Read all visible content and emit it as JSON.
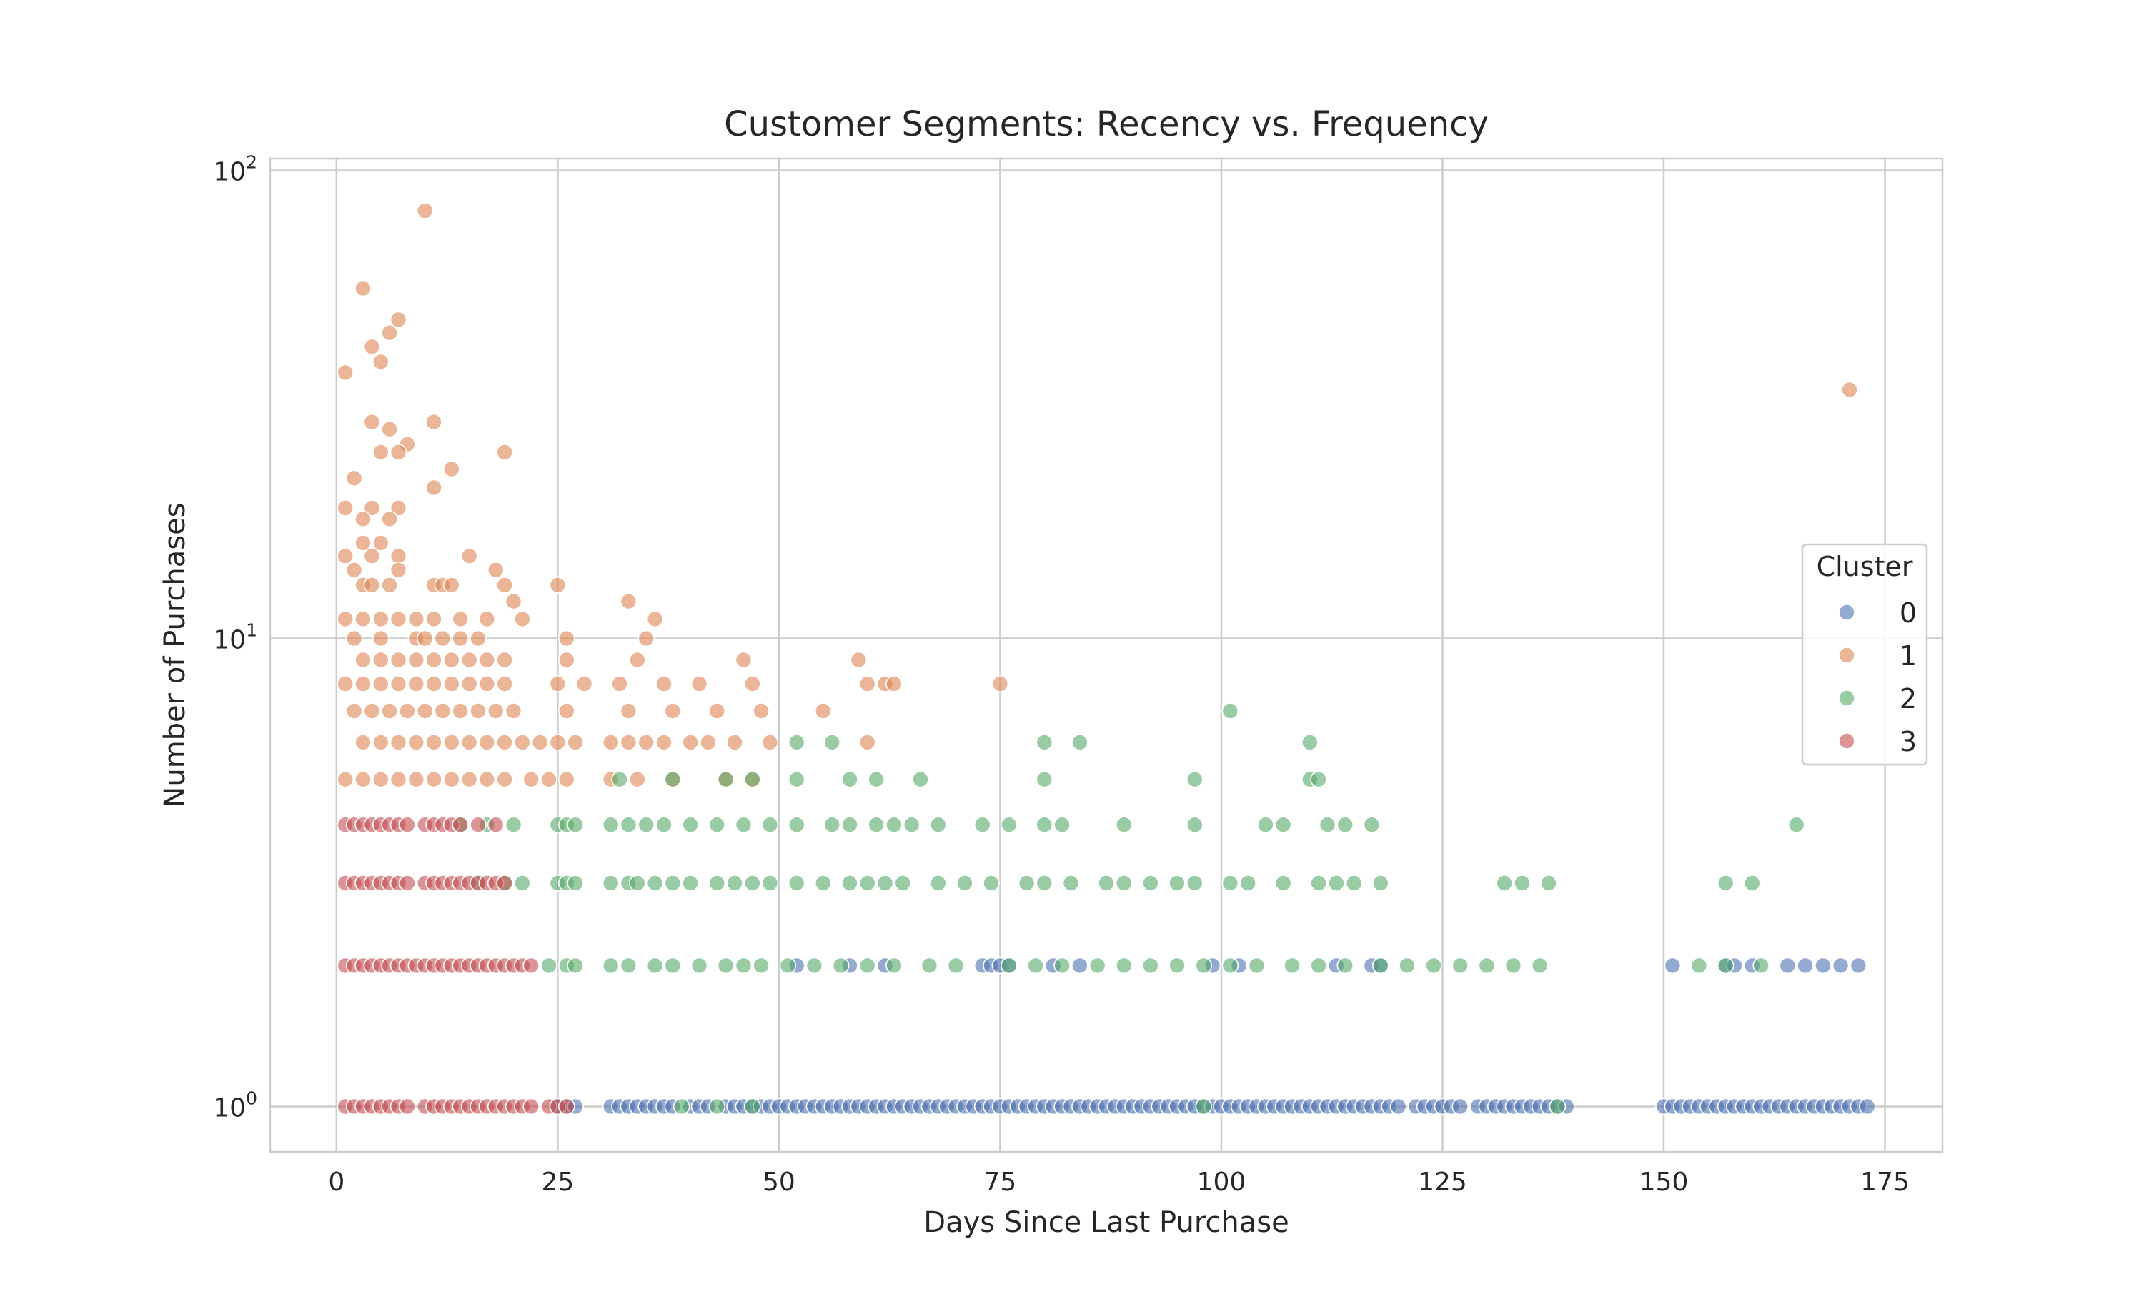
{
  "chart_data": {
    "type": "scatter",
    "title": "Customer Segments: Recency vs. Frequency",
    "xlabel": "Days Since Last Purchase",
    "ylabel": "Number of Purchases",
    "xlim": [
      -7.5,
      181.5
    ],
    "ylim": [
      0.8,
      106
    ],
    "y_scale": "log",
    "x_ticks": [
      0,
      25,
      50,
      75,
      100,
      125,
      150,
      175
    ],
    "y_ticks": [
      {
        "value": 1,
        "base": "10",
        "exp": "0"
      },
      {
        "value": 10,
        "base": "10",
        "exp": "1"
      },
      {
        "value": 100,
        "base": "10",
        "exp": "2"
      }
    ],
    "grid": true,
    "point_alpha": 0.6,
    "legend": {
      "title": "Cluster",
      "position": "center-right"
    },
    "series": [
      {
        "name": "0",
        "color": "#4c72b0",
        "x": [
          25,
          26,
          27,
          31,
          32,
          33,
          34,
          35,
          36,
          37,
          38,
          40,
          41,
          42,
          44,
          45,
          46,
          47,
          48,
          49,
          50,
          51,
          52,
          53,
          54,
          55,
          56,
          57,
          58,
          59,
          60,
          61,
          62,
          63,
          64,
          65,
          66,
          67,
          68,
          69,
          70,
          71,
          72,
          73,
          74,
          75,
          76,
          77,
          78,
          79,
          80,
          81,
          82,
          83,
          84,
          85,
          86,
          87,
          88,
          89,
          90,
          91,
          92,
          93,
          94,
          95,
          96,
          97,
          98,
          99,
          100,
          101,
          102,
          103,
          104,
          105,
          106,
          107,
          108,
          109,
          110,
          111,
          112,
          113,
          114,
          115,
          116,
          117,
          118,
          119,
          120,
          122,
          123,
          124,
          125,
          126,
          127,
          129,
          130,
          131,
          132,
          133,
          134,
          135,
          136,
          137,
          138,
          139,
          150,
          151,
          152,
          153,
          154,
          155,
          156,
          157,
          158,
          159,
          160,
          161,
          162,
          163,
          164,
          165,
          166,
          167,
          168,
          169,
          170,
          171,
          172,
          173,
          52,
          58,
          62,
          73,
          74,
          75,
          76,
          81,
          84,
          99,
          102,
          113,
          117,
          118,
          151,
          157,
          158,
          160,
          164,
          166,
          168,
          170,
          172
        ],
        "y": [
          1,
          1,
          1,
          1,
          1,
          1,
          1,
          1,
          1,
          1,
          1,
          1,
          1,
          1,
          1,
          1,
          1,
          1,
          1,
          1,
          1,
          1,
          1,
          1,
          1,
          1,
          1,
          1,
          1,
          1,
          1,
          1,
          1,
          1,
          1,
          1,
          1,
          1,
          1,
          1,
          1,
          1,
          1,
          1,
          1,
          1,
          1,
          1,
          1,
          1,
          1,
          1,
          1,
          1,
          1,
          1,
          1,
          1,
          1,
          1,
          1,
          1,
          1,
          1,
          1,
          1,
          1,
          1,
          1,
          1,
          1,
          1,
          1,
          1,
          1,
          1,
          1,
          1,
          1,
          1,
          1,
          1,
          1,
          1,
          1,
          1,
          1,
          1,
          1,
          1,
          1,
          1,
          1,
          1,
          1,
          1,
          1,
          1,
          1,
          1,
          1,
          1,
          1,
          1,
          1,
          1,
          1,
          1,
          1,
          1,
          1,
          1,
          1,
          1,
          1,
          1,
          1,
          1,
          1,
          1,
          1,
          1,
          1,
          1,
          1,
          1,
          1,
          1,
          1,
          1,
          1,
          1,
          2,
          2,
          2,
          2,
          2,
          2,
          2,
          2,
          2,
          2,
          2,
          2,
          2,
          2,
          2,
          2,
          2,
          2,
          2,
          2,
          2,
          2,
          2
        ]
      },
      {
        "name": "1",
        "color": "#dd8452",
        "x": [
          10,
          3,
          7,
          6,
          4,
          5,
          1,
          11,
          4,
          6,
          8,
          5,
          19,
          7,
          13,
          2,
          11,
          7,
          1,
          4,
          3,
          6,
          3,
          5,
          1,
          4,
          7,
          15,
          18,
          2,
          3,
          4,
          6,
          7,
          11,
          12,
          13,
          19,
          25,
          33,
          1,
          3,
          5,
          7,
          9,
          11,
          14,
          17,
          20,
          21,
          36,
          2,
          5,
          9,
          10,
          12,
          14,
          16,
          26,
          35,
          3,
          5,
          7,
          9,
          11,
          13,
          15,
          17,
          19,
          26,
          34,
          46,
          59,
          1,
          3,
          5,
          7,
          9,
          11,
          13,
          15,
          17,
          19,
          25,
          28,
          32,
          37,
          41,
          47,
          60,
          62,
          63,
          75,
          2,
          4,
          6,
          8,
          10,
          12,
          14,
          16,
          18,
          20,
          26,
          33,
          38,
          43,
          48,
          55,
          3,
          5,
          7,
          9,
          11,
          13,
          15,
          17,
          19,
          21,
          23,
          25,
          27,
          31,
          33,
          35,
          37,
          40,
          42,
          45,
          49,
          60,
          1,
          3,
          5,
          7,
          9,
          11,
          13,
          15,
          17,
          19,
          22,
          24,
          26,
          31,
          34,
          38,
          44,
          47,
          171
        ],
        "y": [
          82,
          56,
          48,
          45,
          42,
          39,
          37,
          29,
          29,
          28,
          26,
          25,
          25,
          25,
          23,
          22,
          21,
          19,
          19,
          19,
          18,
          18,
          16,
          16,
          15,
          15,
          15,
          15,
          14,
          14,
          13,
          13,
          13,
          14,
          13,
          13,
          13,
          13,
          13,
          12,
          11,
          11,
          11,
          11,
          11,
          11,
          11,
          11,
          12,
          11,
          11,
          10,
          10,
          10,
          10,
          10,
          10,
          10,
          10,
          10,
          9,
          9,
          9,
          9,
          9,
          9,
          9,
          9,
          9,
          9,
          9,
          9,
          9,
          8,
          8,
          8,
          8,
          8,
          8,
          8,
          8,
          8,
          8,
          8,
          8,
          8,
          8,
          8,
          8,
          8,
          8,
          8,
          8,
          7,
          7,
          7,
          7,
          7,
          7,
          7,
          7,
          7,
          7,
          7,
          7,
          7,
          7,
          7,
          7,
          6,
          6,
          6,
          6,
          6,
          6,
          6,
          6,
          6,
          6,
          6,
          6,
          6,
          6,
          6,
          6,
          6,
          6,
          6,
          6,
          6,
          6,
          5,
          5,
          5,
          5,
          5,
          5,
          5,
          5,
          5,
          5,
          5,
          5,
          5,
          5,
          5,
          5,
          5,
          5,
          34
        ]
      },
      {
        "name": "2",
        "color": "#55a868",
        "x": [
          101,
          52,
          56,
          80,
          84,
          110,
          32,
          38,
          44,
          47,
          52,
          58,
          61,
          66,
          80,
          97,
          110,
          111,
          14,
          17,
          20,
          25,
          26,
          27,
          31,
          33,
          35,
          37,
          40,
          43,
          46,
          49,
          52,
          56,
          58,
          61,
          63,
          65,
          68,
          73,
          76,
          80,
          82,
          89,
          97,
          105,
          107,
          112,
          114,
          117,
          165,
          16,
          19,
          21,
          25,
          26,
          27,
          31,
          33,
          34,
          36,
          38,
          40,
          43,
          45,
          47,
          49,
          52,
          55,
          58,
          60,
          62,
          64,
          68,
          71,
          74,
          78,
          80,
          83,
          87,
          89,
          92,
          95,
          97,
          101,
          103,
          107,
          111,
          113,
          115,
          118,
          132,
          134,
          137,
          157,
          160,
          24,
          26,
          27,
          31,
          33,
          36,
          38,
          41,
          44,
          46,
          48,
          51,
          54,
          57,
          60,
          63,
          67,
          70,
          76,
          79,
          82,
          86,
          89,
          92,
          95,
          98,
          101,
          104,
          108,
          111,
          114,
          118,
          121,
          124,
          127,
          130,
          133,
          136,
          154,
          157,
          161,
          39,
          43,
          47,
          98,
          138
        ],
        "y": [
          7,
          6,
          6,
          6,
          6,
          6,
          5,
          5,
          5,
          5,
          5,
          5,
          5,
          5,
          5,
          5,
          5,
          5,
          4,
          4,
          4,
          4,
          4,
          4,
          4,
          4,
          4,
          4,
          4,
          4,
          4,
          4,
          4,
          4,
          4,
          4,
          4,
          4,
          4,
          4,
          4,
          4,
          4,
          4,
          4,
          4,
          4,
          4,
          4,
          4,
          4,
          3,
          3,
          3,
          3,
          3,
          3,
          3,
          3,
          3,
          3,
          3,
          3,
          3,
          3,
          3,
          3,
          3,
          3,
          3,
          3,
          3,
          3,
          3,
          3,
          3,
          3,
          3,
          3,
          3,
          3,
          3,
          3,
          3,
          3,
          3,
          3,
          3,
          3,
          3,
          3,
          3,
          3,
          3,
          3,
          3,
          2,
          2,
          2,
          2,
          2,
          2,
          2,
          2,
          2,
          2,
          2,
          2,
          2,
          2,
          2,
          2,
          2,
          2,
          2,
          2,
          2,
          2,
          2,
          2,
          2,
          2,
          2,
          2,
          2,
          2,
          2,
          2,
          2,
          2,
          2,
          2,
          2,
          2,
          2,
          2,
          2,
          1,
          1,
          1,
          1,
          1
        ]
      },
      {
        "name": "3",
        "color": "#c44e52",
        "x": [
          1,
          2,
          3,
          4,
          5,
          6,
          7,
          8,
          10,
          11,
          12,
          13,
          14,
          16,
          18,
          1,
          2,
          3,
          4,
          5,
          6,
          7,
          8,
          10,
          11,
          12,
          13,
          14,
          15,
          16,
          17,
          18,
          19,
          1,
          2,
          3,
          4,
          5,
          6,
          7,
          8,
          9,
          10,
          11,
          12,
          13,
          14,
          15,
          16,
          17,
          18,
          19,
          20,
          21,
          22,
          1,
          2,
          3,
          4,
          5,
          6,
          7,
          8,
          10,
          11,
          12,
          13,
          14,
          15,
          16,
          17,
          18,
          19,
          20,
          21,
          22,
          24,
          25,
          26
        ],
        "y": [
          4,
          4,
          4,
          4,
          4,
          4,
          4,
          4,
          4,
          4,
          4,
          4,
          4,
          4,
          4,
          3,
          3,
          3,
          3,
          3,
          3,
          3,
          3,
          3,
          3,
          3,
          3,
          3,
          3,
          3,
          3,
          3,
          3,
          2,
          2,
          2,
          2,
          2,
          2,
          2,
          2,
          2,
          2,
          2,
          2,
          2,
          2,
          2,
          2,
          2,
          2,
          2,
          2,
          2,
          2,
          1,
          1,
          1,
          1,
          1,
          1,
          1,
          1,
          1,
          1,
          1,
          1,
          1,
          1,
          1,
          1,
          1,
          1,
          1,
          1,
          1,
          1,
          1,
          1
        ]
      }
    ]
  }
}
